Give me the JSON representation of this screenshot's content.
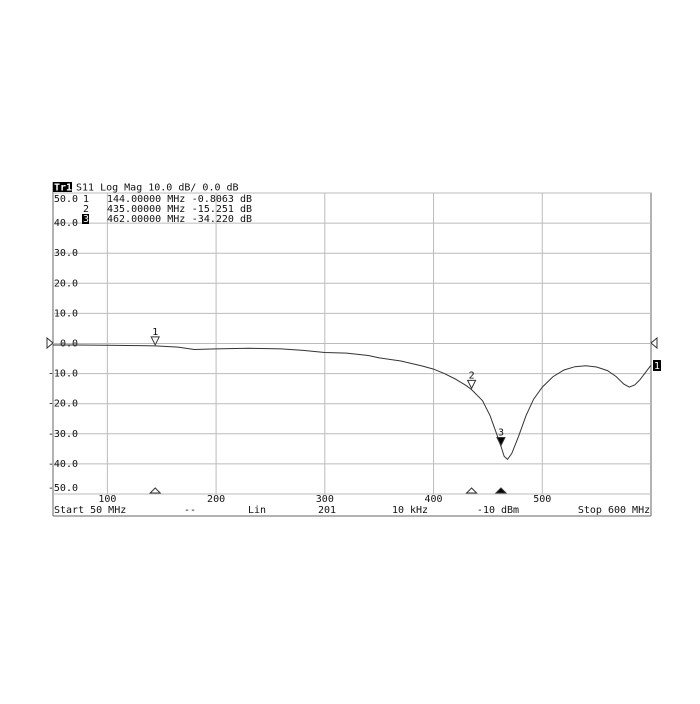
{
  "chart_data": {
    "type": "line",
    "trace_label": "Tr1",
    "title": "S11 Log Mag 10.0 dB/ 0.0 dB",
    "trace_number": "1",
    "x": [
      50,
      70,
      100,
      130,
      144,
      165,
      180,
      200,
      230,
      260,
      280,
      300,
      320,
      340,
      350,
      370,
      390,
      400,
      410,
      420,
      430,
      435,
      445,
      452,
      458,
      462,
      465,
      468,
      472,
      478,
      485,
      492,
      500,
      510,
      520,
      530,
      540,
      550,
      560,
      568,
      575,
      580,
      585,
      590,
      600
    ],
    "series": [
      {
        "color": "#333333",
        "values": [
          -0.5,
          -0.5,
          -0.6,
          -0.7,
          -0.8,
          -1.2,
          -2.0,
          -1.8,
          -1.6,
          -1.8,
          -2.3,
          -3.0,
          -3.2,
          -4.0,
          -4.8,
          -5.8,
          -7.5,
          -8.5,
          -10.0,
          -11.8,
          -14.0,
          -15.3,
          -19.0,
          -24.0,
          -30.0,
          -34.2,
          -37.5,
          -38.5,
          -36.5,
          -31.0,
          -24.0,
          -18.5,
          -14.5,
          -11.0,
          -8.8,
          -7.7,
          -7.4,
          -7.8,
          -9.0,
          -11.0,
          -13.5,
          -14.5,
          -13.8,
          -12.0,
          -7.2
        ]
      }
    ],
    "xlim": [
      50,
      600
    ],
    "ylim": [
      -50,
      50
    ],
    "xticks": [
      100,
      200,
      300,
      400,
      500
    ],
    "yticks": [
      {
        "value": 50,
        "label": "50.0"
      },
      {
        "value": 40,
        "label": "40.0"
      },
      {
        "value": 30,
        "label": "30.0"
      },
      {
        "value": 20,
        "label": "20.0"
      },
      {
        "value": 10,
        "label": "10.0"
      },
      {
        "value": 0,
        "label": "0.0"
      },
      {
        "value": -10,
        "label": "-10.0"
      },
      {
        "value": -20,
        "label": "-20.0"
      },
      {
        "value": -30,
        "label": "-30.0"
      },
      {
        "value": -40,
        "label": "-40.0"
      },
      {
        "value": -50,
        "label": "-50.0"
      }
    ],
    "grid": true,
    "markers": [
      {
        "id": "1",
        "x": 144,
        "x_label": "144.00000 MHz",
        "y": -0.8063,
        "y_label": "-0.8063 dB",
        "active": false
      },
      {
        "id": "2",
        "x": 435,
        "x_label": "435.00000 MHz",
        "y": -15.251,
        "y_label": "-15.251 dB",
        "active": false
      },
      {
        "id": "3",
        "x": 462,
        "x_label": "462.00000 MHz",
        "y": -34.22,
        "y_label": "-34.220 dB",
        "active": true
      }
    ],
    "footer": [
      "Start 50 MHz",
      "--",
      "Lin",
      "201",
      "10 kHz",
      "-10 dBm",
      "Stop 600 MHz"
    ]
  }
}
